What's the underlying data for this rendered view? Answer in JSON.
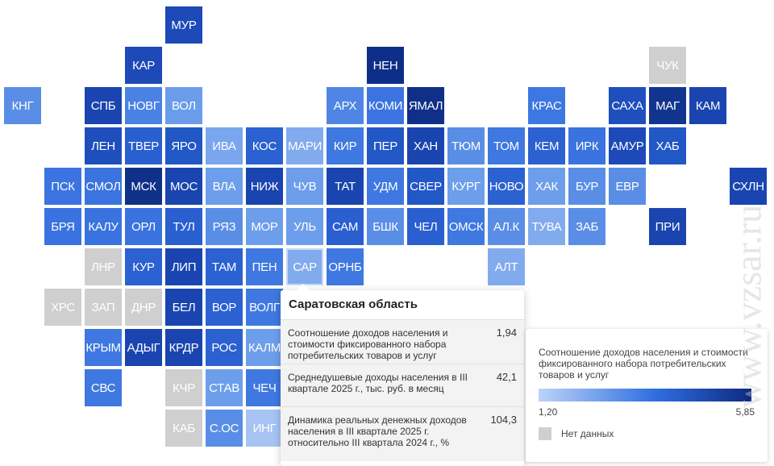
{
  "map": {
    "tiles": [
      {
        "code": "МУР",
        "row": 0,
        "col": 4,
        "color": "#1d4ab8"
      },
      {
        "code": "КАР",
        "row": 1,
        "col": 3,
        "color": "#1d4ab8"
      },
      {
        "code": "НЕН",
        "row": 1,
        "col": 9,
        "color": "#0d2f8a"
      },
      {
        "code": "ЧУК",
        "row": 1,
        "col": 16,
        "color": "#cfcfcf"
      },
      {
        "code": "КНГ",
        "row": 2,
        "col": 0,
        "color": "#5a8ee6"
      },
      {
        "code": "СПБ",
        "row": 2,
        "col": 2,
        "color": "#1a45b0"
      },
      {
        "code": "НОВГ",
        "row": 2,
        "col": 3,
        "color": "#4a82e4"
      },
      {
        "code": "ВОЛ",
        "row": 2,
        "col": 4,
        "color": "#6b9cea"
      },
      {
        "code": "АРХ",
        "row": 2,
        "col": 8,
        "color": "#4f86e5"
      },
      {
        "code": "КОМИ",
        "row": 2,
        "col": 9,
        "color": "#3b74e0"
      },
      {
        "code": "ЯМАЛ",
        "row": 2,
        "col": 10,
        "color": "#0f2f88"
      },
      {
        "code": "КРАС",
        "row": 2,
        "col": 13,
        "color": "#3d77e1"
      },
      {
        "code": "САХА",
        "row": 2,
        "col": 15,
        "color": "#1f4fbd"
      },
      {
        "code": "МАГ",
        "row": 2,
        "col": 16,
        "color": "#11348f"
      },
      {
        "code": "КАМ",
        "row": 2,
        "col": 17,
        "color": "#1a45b0"
      },
      {
        "code": "ЛЕН",
        "row": 3,
        "col": 2,
        "color": "#1f4fbd"
      },
      {
        "code": "ТВЕР",
        "row": 3,
        "col": 3,
        "color": "#2a5fd0"
      },
      {
        "code": "ЯРО",
        "row": 3,
        "col": 4,
        "color": "#2257c6"
      },
      {
        "code": "ИВА",
        "row": 3,
        "col": 5,
        "color": "#7aa6ed"
      },
      {
        "code": "КОС",
        "row": 3,
        "col": 6,
        "color": "#2b61d1"
      },
      {
        "code": "МАРИ",
        "row": 3,
        "col": 7,
        "color": "#82abee"
      },
      {
        "code": "КИР",
        "row": 3,
        "col": 8,
        "color": "#3f78e1"
      },
      {
        "code": "ПЕР",
        "row": 3,
        "col": 9,
        "color": "#2257c6"
      },
      {
        "code": "ХАН",
        "row": 3,
        "col": 10,
        "color": "#1a45b0"
      },
      {
        "code": "ТЮМ",
        "row": 3,
        "col": 11,
        "color": "#5a8ee6"
      },
      {
        "code": "ТОМ",
        "row": 3,
        "col": 12,
        "color": "#3f78e1"
      },
      {
        "code": "КЕМ",
        "row": 3,
        "col": 13,
        "color": "#2b61d1"
      },
      {
        "code": "ИРК",
        "row": 3,
        "col": 14,
        "color": "#3a73df"
      },
      {
        "code": "АМУР",
        "row": 3,
        "col": 15,
        "color": "#1d4ab8"
      },
      {
        "code": "ХАБ",
        "row": 3,
        "col": 16,
        "color": "#2257c6"
      },
      {
        "code": "ПСК",
        "row": 4,
        "col": 1,
        "color": "#3b74e0"
      },
      {
        "code": "СМОЛ",
        "row": 4,
        "col": 2,
        "color": "#3b74e0"
      },
      {
        "code": "МСК",
        "row": 4,
        "col": 3,
        "color": "#0f3188"
      },
      {
        "code": "МОС",
        "row": 4,
        "col": 4,
        "color": "#1a45b0"
      },
      {
        "code": "ВЛА",
        "row": 4,
        "col": 5,
        "color": "#6d9eeb"
      },
      {
        "code": "НИЖ",
        "row": 4,
        "col": 6,
        "color": "#1a45b0"
      },
      {
        "code": "ЧУВ",
        "row": 4,
        "col": 7,
        "color": "#6d9eeb"
      },
      {
        "code": "ТАТ",
        "row": 4,
        "col": 8,
        "color": "#1a45b0"
      },
      {
        "code": "УДМ",
        "row": 4,
        "col": 9,
        "color": "#3f78e1"
      },
      {
        "code": "СВЕР",
        "row": 4,
        "col": 10,
        "color": "#2257c6"
      },
      {
        "code": "КУРГ",
        "row": 4,
        "col": 11,
        "color": "#6d9eeb"
      },
      {
        "code": "НОВО",
        "row": 4,
        "col": 12,
        "color": "#2b61d1"
      },
      {
        "code": "ХАК",
        "row": 4,
        "col": 13,
        "color": "#6d9eeb"
      },
      {
        "code": "БУР",
        "row": 4,
        "col": 14,
        "color": "#5a8ee6"
      },
      {
        "code": "ЕВР",
        "row": 4,
        "col": 15,
        "color": "#5a8ee6"
      },
      {
        "code": "СХЛН",
        "row": 4,
        "col": 18,
        "color": "#1a45b0"
      },
      {
        "code": "БРЯ",
        "row": 5,
        "col": 1,
        "color": "#3a73df"
      },
      {
        "code": "КАЛУ",
        "row": 5,
        "col": 2,
        "color": "#3a73df"
      },
      {
        "code": "ОРЛ",
        "row": 5,
        "col": 3,
        "color": "#3a73df"
      },
      {
        "code": "ТУЛ",
        "row": 5,
        "col": 4,
        "color": "#2a5fd0"
      },
      {
        "code": "РЯЗ",
        "row": 5,
        "col": 5,
        "color": "#5a8ee6"
      },
      {
        "code": "МОР",
        "row": 5,
        "col": 6,
        "color": "#6d9eeb"
      },
      {
        "code": "УЛЬ",
        "row": 5,
        "col": 7,
        "color": "#6d9eeb"
      },
      {
        "code": "САМ",
        "row": 5,
        "col": 8,
        "color": "#2a5fd0"
      },
      {
        "code": "БШК",
        "row": 5,
        "col": 9,
        "color": "#5a8ee6"
      },
      {
        "code": "ЧЕЛ",
        "row": 5,
        "col": 10,
        "color": "#2a5fd0"
      },
      {
        "code": "ОМСК",
        "row": 5,
        "col": 11,
        "color": "#3f78e1"
      },
      {
        "code": "АЛ.К",
        "row": 5,
        "col": 12,
        "color": "#5a8ee6"
      },
      {
        "code": "ТУВА",
        "row": 5,
        "col": 13,
        "color": "#82abee"
      },
      {
        "code": "ЗАБ",
        "row": 5,
        "col": 14,
        "color": "#5a8ee6"
      },
      {
        "code": "ПРИ",
        "row": 5,
        "col": 16,
        "color": "#1a45b0"
      },
      {
        "code": "ЛНР",
        "row": 6,
        "col": 2,
        "color": "#cfcfcf"
      },
      {
        "code": "КУР",
        "row": 6,
        "col": 3,
        "color": "#2b61d1"
      },
      {
        "code": "ЛИП",
        "row": 6,
        "col": 4,
        "color": "#1a45b0"
      },
      {
        "code": "ТАМ",
        "row": 6,
        "col": 5,
        "color": "#2b61d1"
      },
      {
        "code": "ПЕН",
        "row": 6,
        "col": 6,
        "color": "#3f78e1"
      },
      {
        "code": "САР",
        "row": 6,
        "col": 7,
        "color": "#82abee"
      },
      {
        "code": "ОРНБ",
        "row": 6,
        "col": 8,
        "color": "#3f78e1"
      },
      {
        "code": "АЛТ",
        "row": 6,
        "col": 12,
        "color": "#82abee"
      },
      {
        "code": "ХРС",
        "row": 7,
        "col": 1,
        "color": "#cfcfcf"
      },
      {
        "code": "ЗАП",
        "row": 7,
        "col": 2,
        "color": "#cfcfcf"
      },
      {
        "code": "ДНР",
        "row": 7,
        "col": 3,
        "color": "#cfcfcf"
      },
      {
        "code": "БЕЛ",
        "row": 7,
        "col": 4,
        "color": "#1a45b0"
      },
      {
        "code": "ВОР",
        "row": 7,
        "col": 5,
        "color": "#2b61d1"
      },
      {
        "code": "ВОЛГ",
        "row": 7,
        "col": 6,
        "color": "#3f78e1"
      },
      {
        "code": "КРЫМ",
        "row": 8,
        "col": 2,
        "color": "#3f78e1"
      },
      {
        "code": "АДЫГ",
        "row": 8,
        "col": 3,
        "color": "#1a45b0"
      },
      {
        "code": "КРДР",
        "row": 8,
        "col": 4,
        "color": "#1a45b0"
      },
      {
        "code": "РОС",
        "row": 8,
        "col": 5,
        "color": "#2b61d1"
      },
      {
        "code": "КАЛМ",
        "row": 8,
        "col": 6,
        "color": "#6d9eeb"
      },
      {
        "code": "СВС",
        "row": 9,
        "col": 2,
        "color": "#3f78e1"
      },
      {
        "code": "КЧР",
        "row": 9,
        "col": 4,
        "color": "#cfcfcf"
      },
      {
        "code": "СТАВ",
        "row": 9,
        "col": 5,
        "color": "#6d9eeb"
      },
      {
        "code": "ЧЕЧ",
        "row": 9,
        "col": 6,
        "color": "#3f78e1"
      },
      {
        "code": "КАБ",
        "row": 10,
        "col": 4,
        "color": "#cfcfcf"
      },
      {
        "code": "С.ОС",
        "row": 10,
        "col": 5,
        "color": "#5a8ee6"
      },
      {
        "code": "ИНГ",
        "row": 10,
        "col": 6,
        "color": "#a6c3f3"
      }
    ]
  },
  "tooltip": {
    "title": "Саратовская область",
    "rows": [
      {
        "label": "Соотношение доходов населения и стоимости фиксированного набора потребительских товаров и услуг",
        "value": "1,94"
      },
      {
        "label": "Среднедушевые доходы населения в III квартале 2025 г., тыс. руб. в месяц",
        "value": "42,1"
      },
      {
        "label": "Динамика реальных денежных доходов населения в III квартале 2025 г. относительно III квартала 2024 г., %",
        "value": "104,3"
      }
    ]
  },
  "legend": {
    "title": "Соотношение доходов населения и стоимости фиксированного набора потребительских товаров и услуг",
    "min": "1,20",
    "max": "5,85",
    "gradient": [
      "#bcd3f8",
      "#2f6ee0",
      "#0e2a80"
    ],
    "no_data_label": "Нет данных",
    "no_data_color": "#cfcfcf"
  },
  "watermark": "www.vzsar.ru",
  "selected_region": "САР"
}
